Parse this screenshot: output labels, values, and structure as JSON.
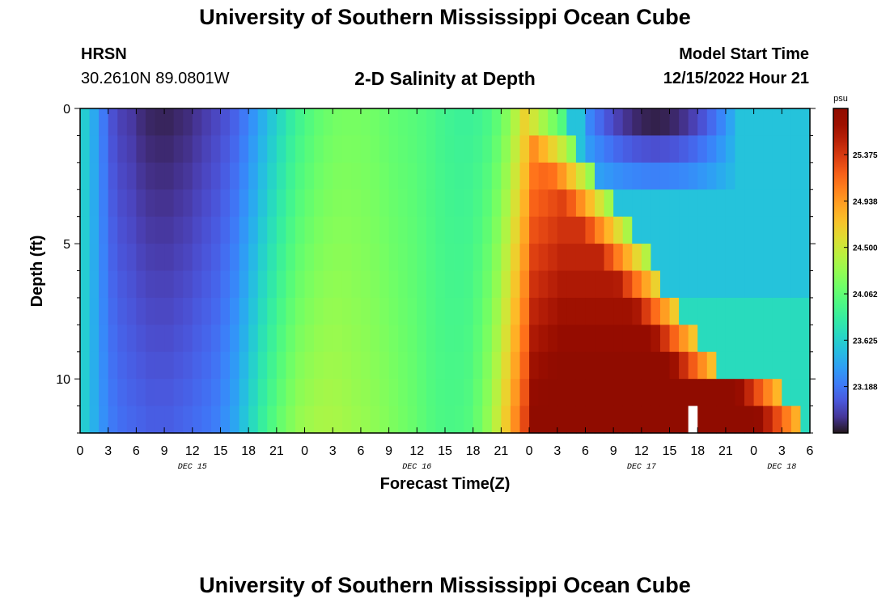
{
  "page": {
    "title": "University of Southern Mississippi Ocean Cube",
    "footer_title": "University of Southern Mississippi Ocean Cube",
    "station": "HRSN",
    "coordinates": "30.2610N  89.0801W",
    "model_start_label": "Model Start Time",
    "model_start_value": "12/15/2022 Hour 21",
    "chart_title": "2-D Salinity at Depth"
  },
  "chart_data": {
    "type": "heatmap",
    "title": "2-D Salinity at Depth",
    "xlabel": "Forecast Time(Z)",
    "ylabel": "Depth (ft)",
    "colorbar_unit": "psu",
    "x_start": "DEC 15 00Z",
    "x_step_hours": 1,
    "x_count": 78,
    "xlim_hours": [
      0,
      78
    ],
    "x_tick_labels": [
      "0",
      "3",
      "6",
      "9",
      "12",
      "15",
      "18",
      "21",
      "0",
      "3",
      "6",
      "9",
      "12",
      "15",
      "18",
      "21",
      "0",
      "3",
      "6",
      "9",
      "12",
      "15",
      "18",
      "21",
      "0",
      "3",
      "6"
    ],
    "day_labels": [
      {
        "text": "DEC 15",
        "at_hour": 12
      },
      {
        "text": "DEC 16",
        "at_hour": 36
      },
      {
        "text": "DEC 17",
        "at_hour": 60
      },
      {
        "text": "DEC 18",
        "at_hour": 75
      }
    ],
    "ylim": [
      0,
      12
    ],
    "y_inverted": true,
    "y_tick_labels": [
      "0",
      "5",
      "10"
    ],
    "y_tick_values": [
      0,
      5,
      10
    ],
    "depth_levels": 12,
    "colorbar": {
      "min": 22.75,
      "max": 25.81,
      "tick_values": [
        23.188,
        23.625,
        24.062,
        24.5,
        24.938,
        25.375
      ],
      "tick_labels": [
        "23.188",
        "23.625",
        "24.062",
        "24.500",
        "24.938",
        "25.375"
      ],
      "colormap": "turbo"
    },
    "missing_cell": {
      "hour": 65,
      "level": 11
    },
    "profile": {
      "description_free": true,
      "hours": [
        0,
        1,
        2,
        3,
        4,
        5,
        6,
        7,
        8,
        9,
        10,
        11,
        12,
        13,
        14,
        15,
        16,
        17,
        18,
        19,
        20,
        21,
        22,
        23,
        24,
        25,
        26,
        27,
        28,
        29,
        30,
        31,
        32,
        33,
        34,
        35,
        36,
        37,
        38,
        39,
        40,
        41,
        42,
        43,
        44,
        45,
        46,
        47
      ],
      "surface": [
        23.6,
        23.42,
        23.2,
        23.02,
        22.95,
        22.92,
        22.86,
        22.83,
        22.82,
        22.82,
        22.84,
        22.86,
        22.9,
        22.94,
        22.98,
        23.03,
        23.1,
        23.2,
        23.32,
        23.45,
        23.58,
        23.7,
        23.82,
        23.92,
        24.0,
        24.07,
        24.12,
        24.15,
        24.16,
        24.16,
        24.15,
        24.13,
        24.1,
        24.07,
        24.05,
        24.03,
        24.0,
        23.97,
        23.93,
        23.9,
        23.88,
        23.88,
        23.9,
        23.95,
        24.05,
        24.2,
        24.4,
        24.65
      ],
      "bottom": [
        23.6,
        23.45,
        23.3,
        23.2,
        23.15,
        23.12,
        23.1,
        23.08,
        23.08,
        23.08,
        23.1,
        23.12,
        23.15,
        23.18,
        23.22,
        23.3,
        23.4,
        23.55,
        23.7,
        23.85,
        23.98,
        24.1,
        24.2,
        24.28,
        24.32,
        24.35,
        24.36,
        24.35,
        24.33,
        24.3,
        24.28,
        24.25,
        24.22,
        24.18,
        24.14,
        24.1,
        24.05,
        24.0,
        23.97,
        23.96,
        23.97,
        24.0,
        24.1,
        24.25,
        24.45,
        24.7,
        25.0,
        25.3
      ]
    }
  }
}
